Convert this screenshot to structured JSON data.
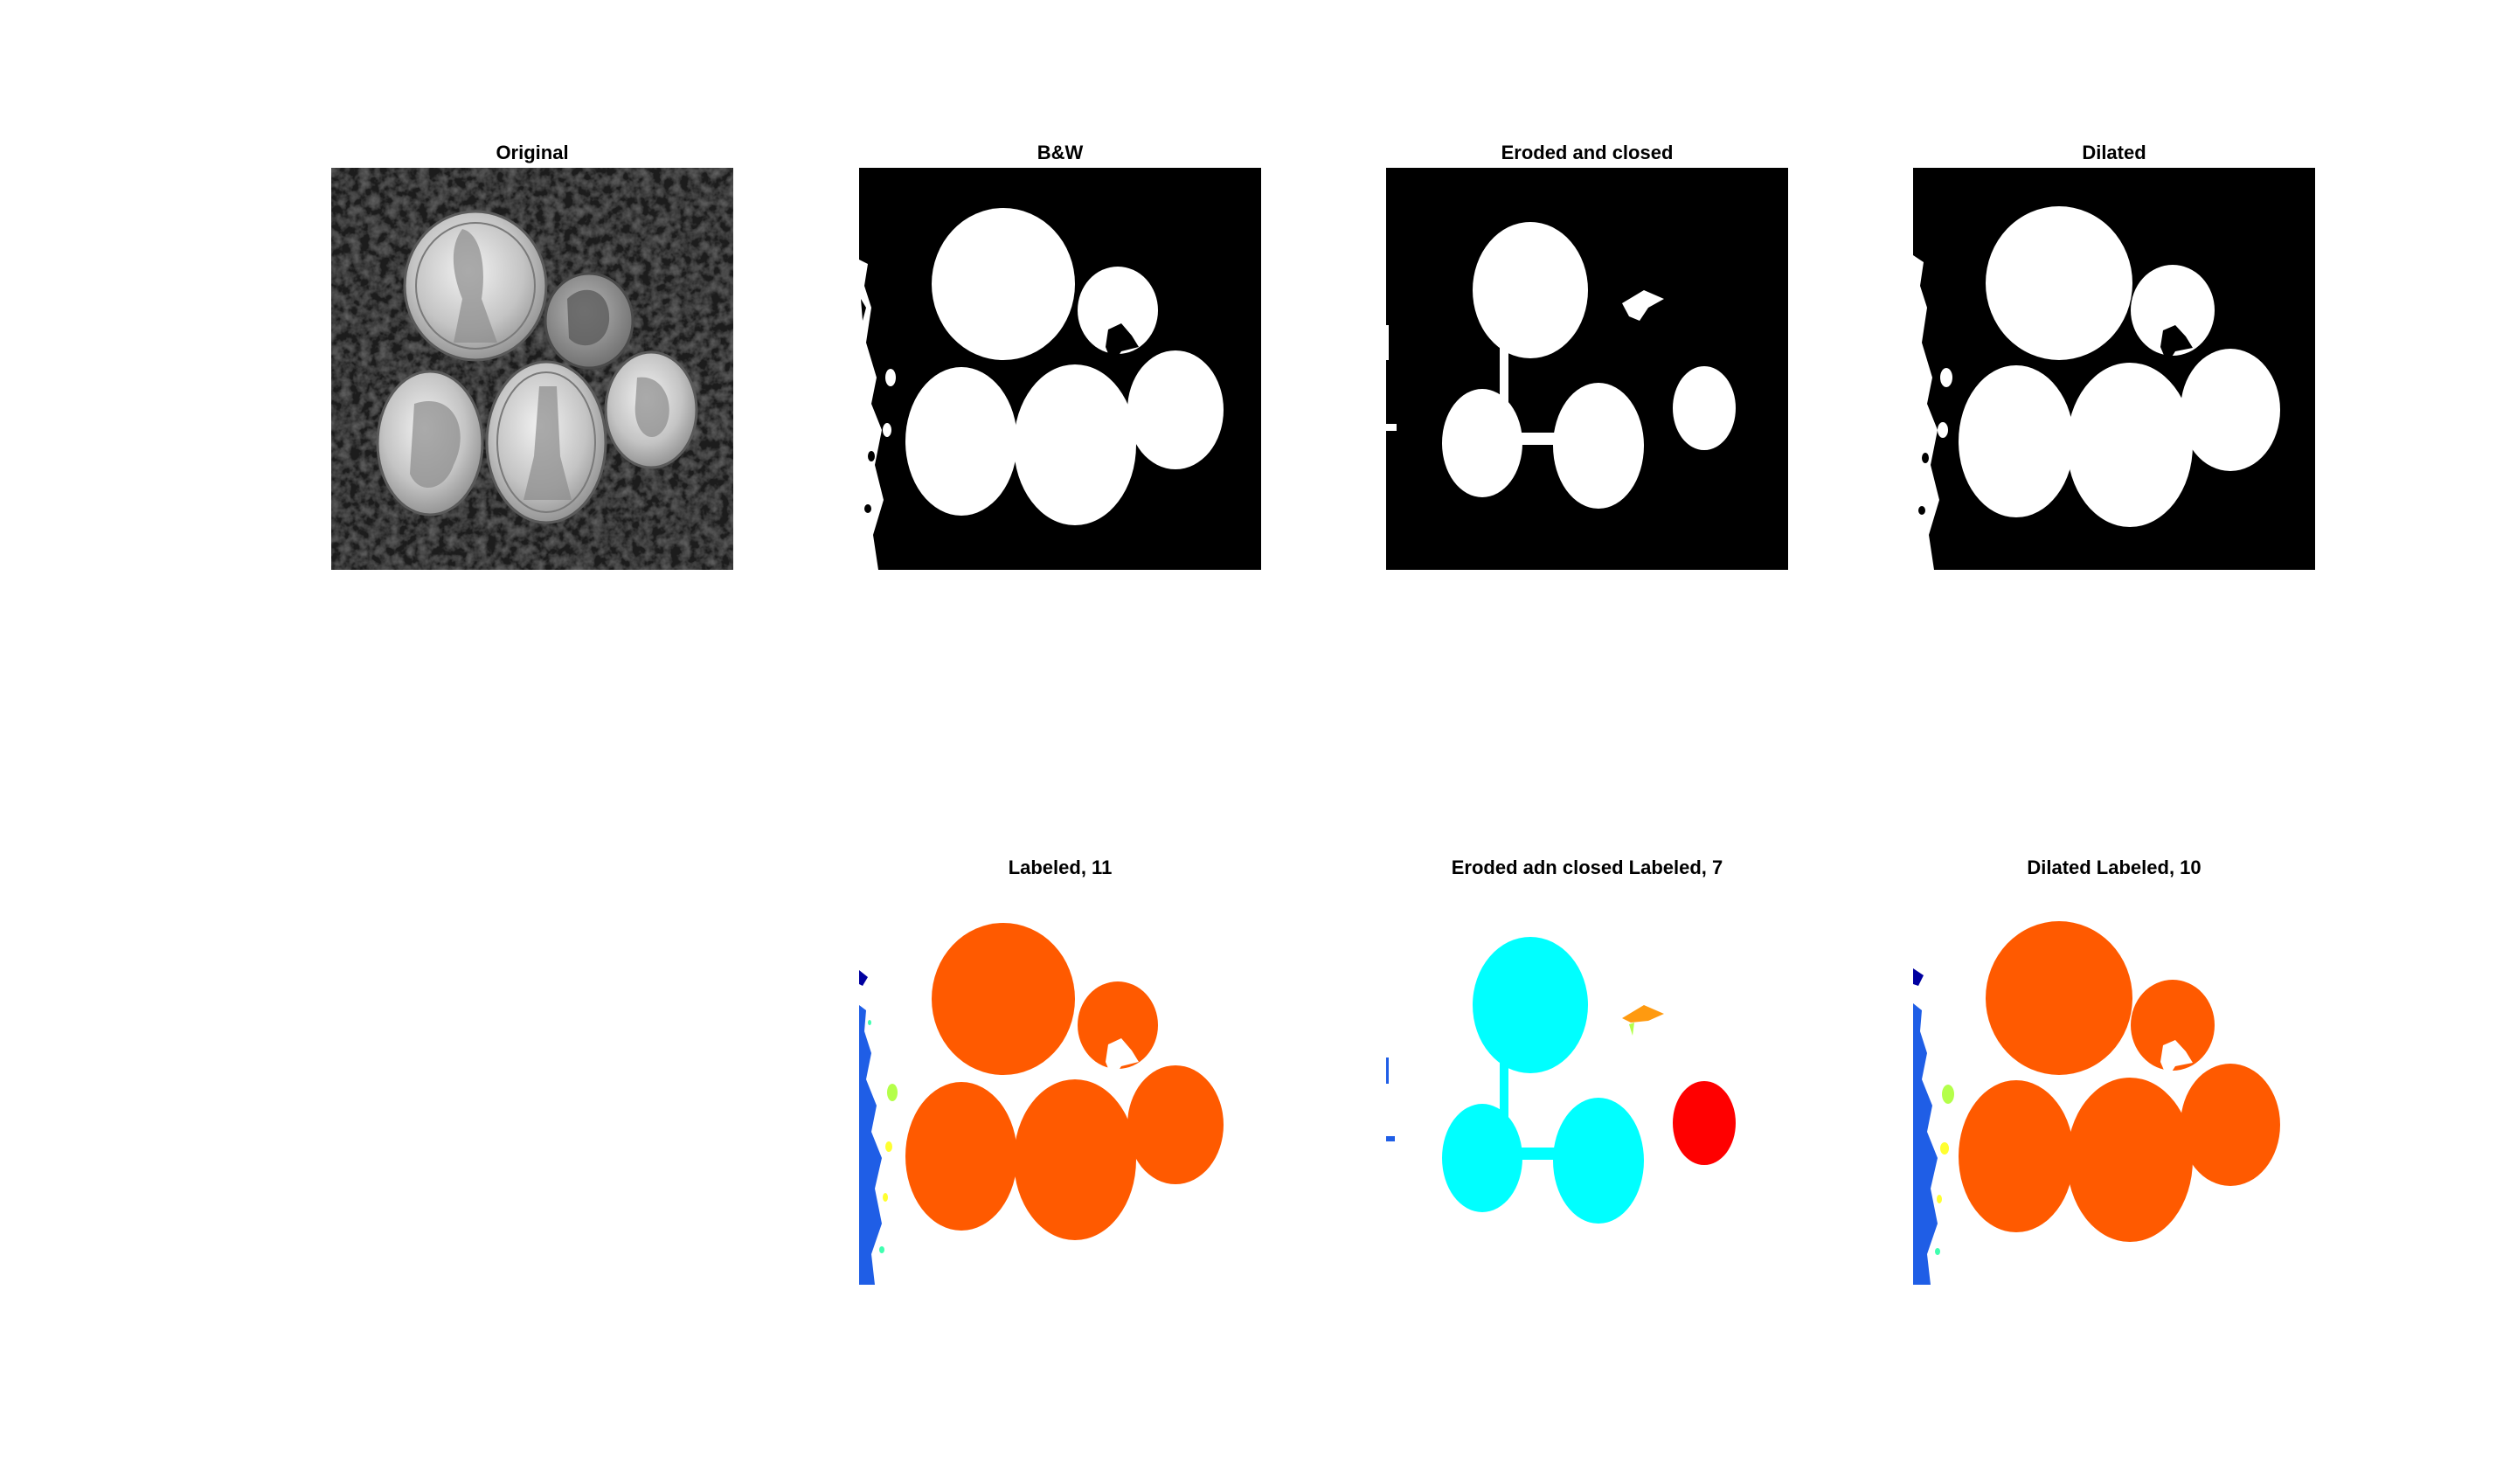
{
  "figure": {
    "panels": [
      {
        "id": "p1",
        "title": "Original"
      },
      {
        "id": "p2",
        "title": "B&W"
      },
      {
        "id": "p3",
        "title": "Eroded and closed"
      },
      {
        "id": "p4",
        "title": "Dilated"
      },
      {
        "id": "p5",
        "title": "Labeled, 11"
      },
      {
        "id": "p6",
        "title": "Eroded adn closed Labeled, 7"
      },
      {
        "id": "p7",
        "title": "Dilated Labeled, 10"
      }
    ]
  },
  "colors": {
    "background": "#ffffff",
    "mask_black": "#000000",
    "mask_white": "#ffffff",
    "label_orange": "#ff5a00",
    "label_blue": "#1f5ee6",
    "label_navy": "#0000a0",
    "label_cyan": "#00ffff",
    "label_red": "#ff0000",
    "label_lime": "#b4ff4a",
    "label_yellow": "#ffff30",
    "label_amber": "#ff9a10",
    "label_mint": "#40ffb0"
  }
}
